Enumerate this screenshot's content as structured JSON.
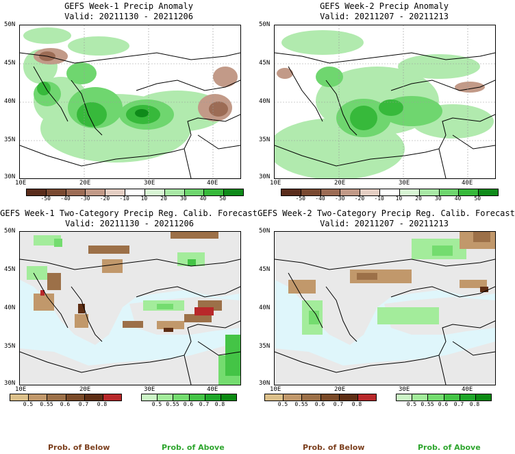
{
  "panels": [
    {
      "title": "GEFS Week-1 Precip Anomaly",
      "valid": "Valid: 20211130 - 20211206"
    },
    {
      "title": "GEFS Week-2 Precip Anomaly",
      "valid": "Valid: 20211207 - 20211213"
    },
    {
      "title": "GEFS Week-1 Two-Category Precip Reg. Calib. Forecast",
      "valid": "Valid: 20211130 - 20211206"
    },
    {
      "title": "GEFS Week-2 Two-Category Precip Reg. Calib. Forecast",
      "valid": "Valid: 20211207 - 20211213"
    }
  ],
  "axes": {
    "lat_labels": [
      "50N",
      "45N",
      "40N",
      "35N",
      "30N"
    ],
    "lon_labels": [
      "10E",
      "20E",
      "30E",
      "40E"
    ]
  },
  "anomaly_colorbar": {
    "ticks": [
      "-50",
      "-40",
      "-30",
      "-20",
      "-10",
      "10",
      "20",
      "30",
      "40",
      "50"
    ],
    "colors": [
      "#5a2d1c",
      "#7a4a32",
      "#9c6c55",
      "#c29a88",
      "#e5cfc4",
      "#ffffff",
      "#d8f5d4",
      "#a9e8a6",
      "#6fd66f",
      "#37b93b",
      "#0f8a1a"
    ]
  },
  "prob_below_colorbar": {
    "ticks": [
      "0.5",
      "0.55",
      "0.6",
      "0.7",
      "0.8"
    ],
    "colors": [
      "#dcc08a",
      "#c1986b",
      "#9c7048",
      "#7a4a28",
      "#5e2e14",
      "#b8282a"
    ]
  },
  "prob_above_colorbar": {
    "ticks": [
      "0.5",
      "0.55",
      "0.6",
      "0.7",
      "0.8"
    ],
    "colors": [
      "#ccf5c6",
      "#a3ec9b",
      "#74dc6f",
      "#44c446",
      "#1fa72a",
      "#0b8a12"
    ]
  },
  "legend": {
    "below_left": "Prob. of Below",
    "above_left": "Prob. of Above",
    "below_right": "Prob. of Below",
    "above_right": "Prob. of Above"
  },
  "colors": {
    "sea": "#dff6fb",
    "land_neutral": "#e9e9e9",
    "below_text": "#7b3f1e",
    "above_text": "#2ea52e"
  }
}
